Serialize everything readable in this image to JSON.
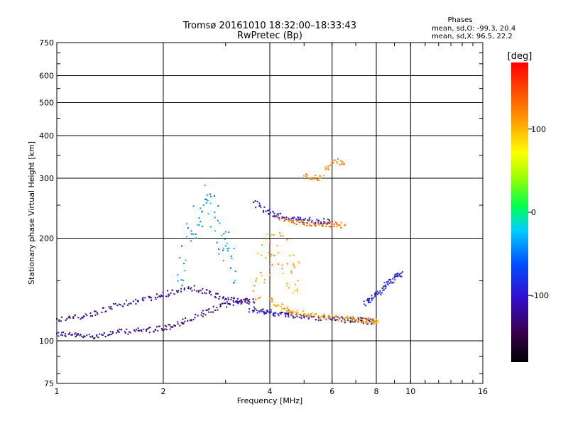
{
  "chart_data": {
    "type": "scatter",
    "title": "Tromsø 20161010 18:32:00–18:33:43",
    "subtitle": "RwPretec (Bp)",
    "xlabel": "Frequency [MHz]",
    "ylabel": "Stationary phase Virtual Height [km]",
    "x_scale": "log",
    "y_scale": "log",
    "xlim": [
      1,
      16
    ],
    "ylim": [
      75,
      750
    ],
    "x_ticks": [
      "1",
      "2",
      "4",
      "6",
      "8",
      "10",
      "16"
    ],
    "y_ticks": [
      "75",
      "100",
      "200",
      "300",
      "400",
      "500",
      "600",
      "750"
    ],
    "grid": true,
    "stats": {
      "title": "Phases",
      "line_o": "mean, sd,O: -99.3, 20.4",
      "line_x": "mean, sd,X:  96.5, 22.2"
    },
    "colorbar": {
      "label": "[deg]",
      "range": [
        -180,
        180
      ],
      "ticks": [
        "100",
        "0",
        "-100"
      ],
      "tick_values": [
        100,
        0,
        -100
      ]
    },
    "series": [
      {
        "trace": "low-o-trace",
        "phase": -125,
        "x": [
          1.0,
          1.1,
          1.2,
          1.35,
          1.5,
          1.7,
          1.9,
          2.1,
          2.3,
          2.6,
          2.9,
          3.2,
          3.5
        ],
        "y": [
          105,
          104,
          103,
          104,
          106,
          107,
          108,
          110,
          114,
          120,
          126,
          130,
          132
        ]
      },
      {
        "trace": "upper-o-trace",
        "phase": -120,
        "x": [
          1.0,
          1.15,
          1.3,
          1.5,
          1.7,
          1.9,
          2.1,
          2.4,
          2.7,
          3.0,
          3.3,
          3.6
        ],
        "y": [
          116,
          117,
          121,
          128,
          131,
          134,
          138,
          143,
          138,
          133,
          131,
          130
        ]
      },
      {
        "trace": "f-layer-o-trace",
        "phase": -100,
        "x": [
          3.5,
          3.8,
          4.0,
          4.3,
          4.6,
          5.0,
          5.5,
          6.0,
          6.5,
          7.0,
          7.5,
          7.9
        ],
        "y": [
          124,
          122,
          121,
          120,
          119,
          118,
          117,
          116,
          115,
          115,
          114,
          114
        ]
      },
      {
        "trace": "f-layer-x-trace",
        "phase": 110,
        "x": [
          4.0,
          4.3,
          4.6,
          5.0,
          5.5,
          6.0,
          6.5,
          7.0,
          7.5,
          7.8,
          8.0
        ],
        "y": [
          133,
          126,
          122,
          120,
          118,
          117,
          116,
          115,
          115,
          114,
          114
        ]
      },
      {
        "trace": "rising-o-trace",
        "phase": -90,
        "x": [
          7.4,
          7.8,
          8.2,
          8.6,
          9.0,
          9.4
        ],
        "y": [
          128,
          133,
          140,
          147,
          153,
          158
        ]
      },
      {
        "trace": "spread-cloud",
        "phase": -40,
        "x": [
          2.2,
          2.4,
          2.6,
          2.8,
          3.0,
          3.2
        ],
        "y": [
          150,
          210,
          250,
          230,
          190,
          160
        ]
      },
      {
        "trace": "x-vertical-cloud",
        "phase": 110,
        "x": [
          3.6,
          3.9,
          4.2,
          4.6,
          4.8
        ],
        "y": [
          140,
          175,
          190,
          160,
          150
        ]
      },
      {
        "trace": "top-o-trace",
        "phase": -100,
        "x": [
          3.6,
          3.9,
          4.2,
          4.6,
          5.0,
          5.5,
          6.0
        ],
        "y": [
          255,
          240,
          235,
          228,
          226,
          225,
          224
        ]
      },
      {
        "trace": "top-x-trace",
        "phase": 130,
        "x": [
          4.2,
          4.6,
          5.0,
          5.5,
          6.0,
          6.5
        ],
        "y": [
          230,
          225,
          222,
          220,
          219,
          218
        ]
      },
      {
        "trace": "high-x-patch",
        "phase": 120,
        "x": [
          5.0,
          5.5,
          6.0,
          6.5
        ],
        "y": [
          305,
          300,
          340,
          330
        ]
      }
    ]
  }
}
